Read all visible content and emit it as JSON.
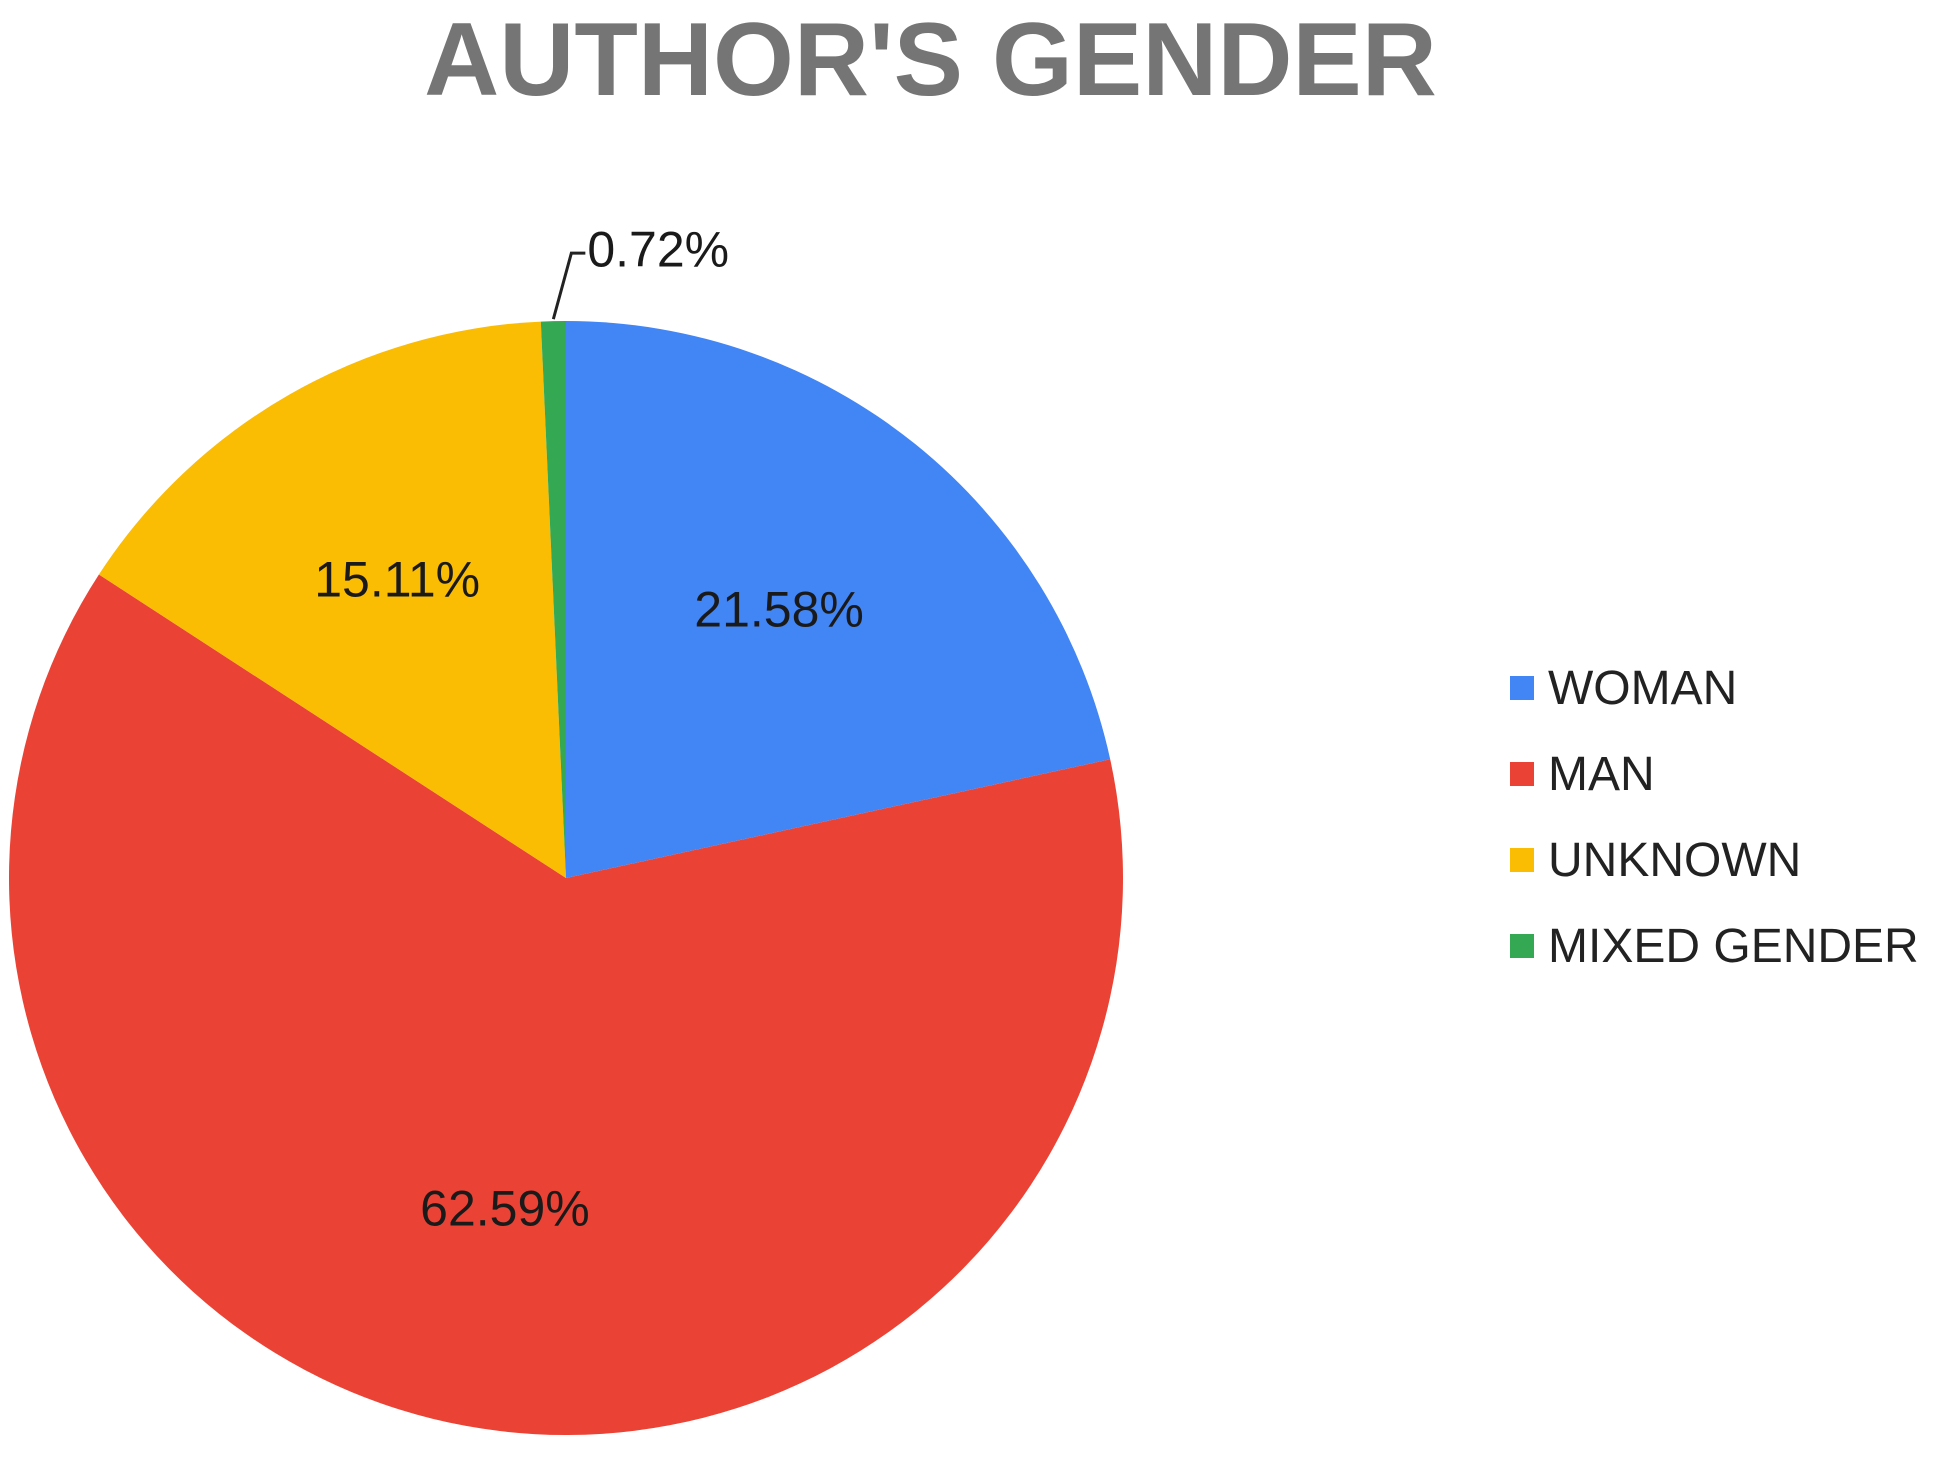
{
  "chart_data": {
    "type": "pie",
    "title": "AUTHOR'S GENDER",
    "categories": [
      "WOMAN",
      "MAN",
      "UNKNOWN",
      "MIXED GENDER"
    ],
    "values": [
      21.58,
      62.59,
      15.11,
      0.72
    ],
    "value_labels": [
      "21.58%",
      "62.59%",
      "15.11%",
      "0.72%"
    ],
    "colors": [
      "#4285F4",
      "#EA4335",
      "#FBBC04",
      "#34A853"
    ],
    "start_angle": "12 o'clock",
    "direction": "clockwise",
    "legend_position": "right"
  }
}
